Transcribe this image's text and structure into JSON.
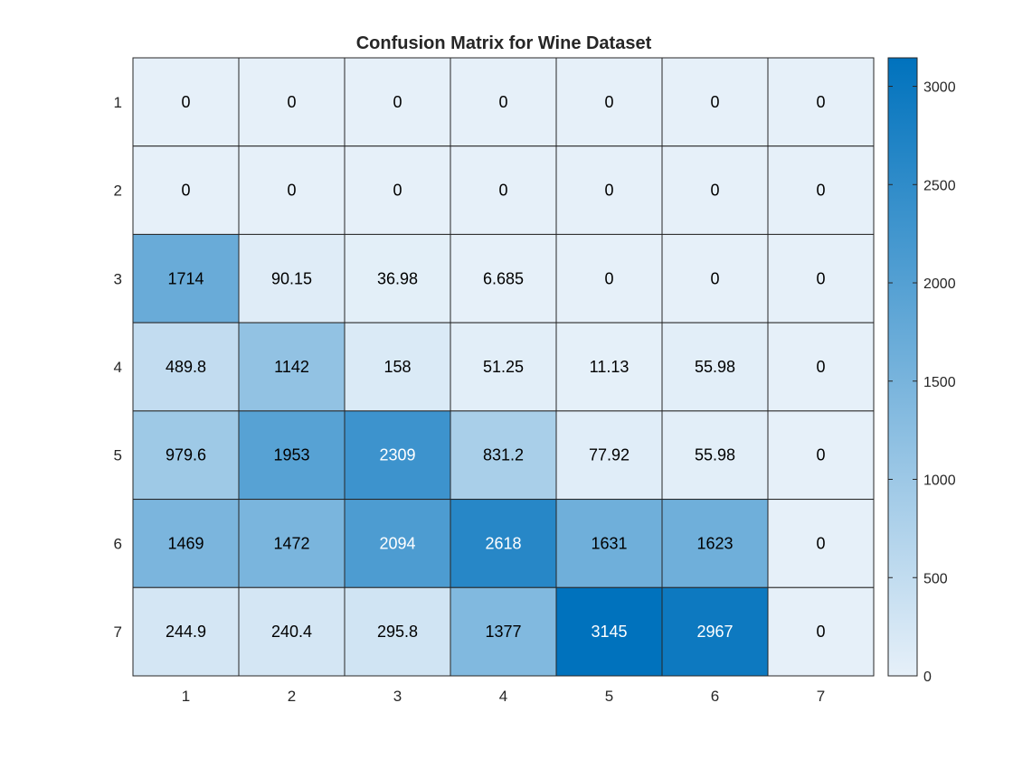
{
  "chart_data": {
    "type": "heatmap",
    "title": "Confusion Matrix for Wine Dataset",
    "xlabel": "",
    "ylabel": "",
    "x_categories": [
      "1",
      "2",
      "3",
      "4",
      "5",
      "6",
      "7"
    ],
    "y_categories": [
      "1",
      "2",
      "3",
      "4",
      "5",
      "6",
      "7"
    ],
    "cell_labels": [
      [
        "0",
        "0",
        "0",
        "0",
        "0",
        "0",
        "0"
      ],
      [
        "0",
        "0",
        "0",
        "0",
        "0",
        "0",
        "0"
      ],
      [
        "1714",
        "90.15",
        "36.98",
        "6.685",
        "0",
        "0",
        "0"
      ],
      [
        "489.8",
        "1142",
        "158",
        "51.25",
        "11.13",
        "55.98",
        "0"
      ],
      [
        "979.6",
        "1953",
        "2309",
        "831.2",
        "77.92",
        "55.98",
        "0"
      ],
      [
        "1469",
        "1472",
        "2094",
        "2618",
        "1631",
        "1623",
        "0"
      ],
      [
        "244.9",
        "240.4",
        "295.8",
        "1377",
        "3145",
        "2967",
        "0"
      ]
    ],
    "values": [
      [
        0,
        0,
        0,
        0,
        0,
        0,
        0
      ],
      [
        0,
        0,
        0,
        0,
        0,
        0,
        0
      ],
      [
        1714,
        90.15,
        36.98,
        6.685,
        0,
        0,
        0
      ],
      [
        489.8,
        1142,
        158,
        51.25,
        11.13,
        55.98,
        0
      ],
      [
        979.6,
        1953,
        2309,
        831.2,
        77.92,
        55.98,
        0
      ],
      [
        1469,
        1472,
        2094,
        2618,
        1631,
        1623,
        0
      ],
      [
        244.9,
        240.4,
        295.8,
        1377,
        3145,
        2967,
        0
      ]
    ],
    "colorbar": {
      "range": [
        0,
        3145
      ],
      "ticks": [
        0,
        500,
        1000,
        1500,
        2000,
        2500,
        3000
      ],
      "tick_labels": [
        "0",
        "500",
        "1000",
        "1500",
        "2000",
        "2500",
        "3000"
      ],
      "color_low": "#e6f0f9",
      "color_high": "#0072bd"
    },
    "grid": true,
    "legend": "colorbar-right"
  }
}
